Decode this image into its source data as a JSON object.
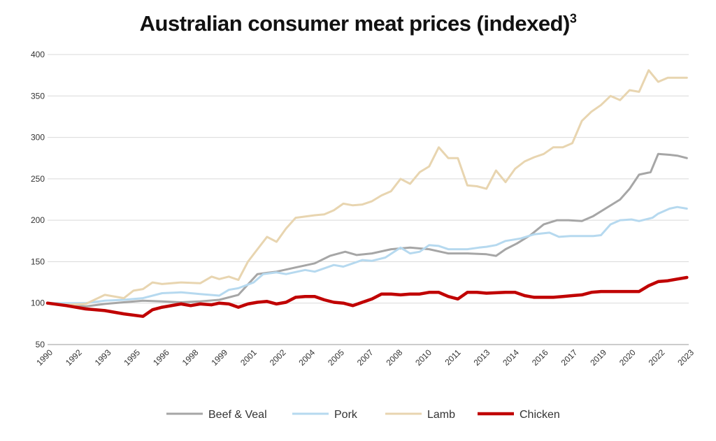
{
  "chart_data": {
    "type": "line",
    "title": "Australian consumer meat prices (indexed)",
    "title_superscript": "3",
    "xlabel": "",
    "ylabel": "",
    "ylim": [
      50,
      400
    ],
    "yticks": [
      50,
      100,
      150,
      200,
      250,
      300,
      350,
      400
    ],
    "xlim": [
      1990,
      2023.6
    ],
    "xticks": [
      "1990",
      "1992",
      "1993",
      "1995",
      "1996",
      "1998",
      "1999",
      "2001",
      "2002",
      "2004",
      "2005",
      "2007",
      "2008",
      "2010",
      "2011",
      "2013",
      "2014",
      "2016",
      "2017",
      "2019",
      "2020",
      "2022",
      "2023"
    ],
    "grid": "horizontal",
    "legend_position": "bottom",
    "series": [
      {
        "name": "Beef & Veal",
        "color": "#a6a6a6",
        "points": [
          [
            1990,
            100
          ],
          [
            1991,
            98
          ],
          [
            1992,
            96
          ],
          [
            1993,
            99
          ],
          [
            1994,
            101
          ],
          [
            1995,
            103
          ],
          [
            1996,
            102
          ],
          [
            1997,
            101
          ],
          [
            1998,
            102
          ],
          [
            1999,
            104
          ],
          [
            2000,
            110
          ],
          [
            2001,
            135
          ],
          [
            2002,
            138
          ],
          [
            2003,
            143
          ],
          [
            2004,
            148
          ],
          [
            2004.8,
            157
          ],
          [
            2005.6,
            162
          ],
          [
            2006.2,
            158
          ],
          [
            2007,
            160
          ],
          [
            2008,
            165
          ],
          [
            2009,
            167
          ],
          [
            2010,
            165
          ],
          [
            2011,
            160
          ],
          [
            2012,
            160
          ],
          [
            2013,
            159
          ],
          [
            2013.5,
            157
          ],
          [
            2014,
            165
          ],
          [
            2014.6,
            172
          ],
          [
            2015.3,
            182
          ],
          [
            2016,
            195
          ],
          [
            2016.7,
            200
          ],
          [
            2017.3,
            200
          ],
          [
            2018,
            199
          ],
          [
            2018.6,
            205
          ],
          [
            2019.3,
            215
          ],
          [
            2020,
            225
          ],
          [
            2020.5,
            238
          ],
          [
            2021,
            255
          ],
          [
            2021.6,
            258
          ],
          [
            2022,
            280
          ],
          [
            2022.6,
            279
          ],
          [
            2023,
            278
          ],
          [
            2023.5,
            275
          ]
        ]
      },
      {
        "name": "Pork",
        "color": "#b6d9ef",
        "points": [
          [
            1990,
            100
          ],
          [
            1991,
            100
          ],
          [
            1992,
            100
          ],
          [
            1993,
            103
          ],
          [
            1994,
            104
          ],
          [
            1995,
            106
          ],
          [
            1996,
            112
          ],
          [
            1997,
            113
          ],
          [
            1998,
            111
          ],
          [
            1999,
            109
          ],
          [
            1999.5,
            116
          ],
          [
            2000,
            118
          ],
          [
            2000.8,
            125
          ],
          [
            2001.3,
            135
          ],
          [
            2002,
            137
          ],
          [
            2002.5,
            135
          ],
          [
            2003.5,
            140
          ],
          [
            2004,
            138
          ],
          [
            2005,
            146
          ],
          [
            2005.5,
            144
          ],
          [
            2006,
            148
          ],
          [
            2006.5,
            152
          ],
          [
            2007,
            151
          ],
          [
            2007.7,
            155
          ],
          [
            2008.5,
            167
          ],
          [
            2009,
            160
          ],
          [
            2009.5,
            162
          ],
          [
            2010,
            170
          ],
          [
            2010.5,
            169
          ],
          [
            2011,
            165
          ],
          [
            2012,
            165
          ],
          [
            2012.6,
            167
          ],
          [
            2013,
            168
          ],
          [
            2013.5,
            170
          ],
          [
            2014,
            175
          ],
          [
            2014.8,
            178
          ],
          [
            2015.5,
            183
          ],
          [
            2016.3,
            185
          ],
          [
            2016.8,
            180
          ],
          [
            2017.4,
            181
          ],
          [
            2018,
            181
          ],
          [
            2018.6,
            181
          ],
          [
            2019,
            182
          ],
          [
            2019.5,
            195
          ],
          [
            2020,
            200
          ],
          [
            2020.6,
            201
          ],
          [
            2021,
            199
          ],
          [
            2021.7,
            203
          ],
          [
            2022,
            208
          ],
          [
            2022.6,
            214
          ],
          [
            2023,
            216
          ],
          [
            2023.5,
            214
          ]
        ]
      },
      {
        "name": "Lamb",
        "color": "#e8d5b0",
        "points": [
          [
            1990,
            100
          ],
          [
            1991,
            98
          ],
          [
            1992,
            99
          ],
          [
            1993,
            110
          ],
          [
            1994,
            106
          ],
          [
            1994.5,
            115
          ],
          [
            1995,
            117
          ],
          [
            1995.5,
            125
          ],
          [
            1996,
            123
          ],
          [
            1997,
            125
          ],
          [
            1998,
            124
          ],
          [
            1998.6,
            132
          ],
          [
            1999,
            129
          ],
          [
            1999.5,
            132
          ],
          [
            2000,
            128
          ],
          [
            2000.5,
            150
          ],
          [
            2001,
            165
          ],
          [
            2001.5,
            180
          ],
          [
            2002,
            174
          ],
          [
            2002.5,
            190
          ],
          [
            2003,
            203
          ],
          [
            2004,
            206
          ],
          [
            2004.5,
            207
          ],
          [
            2005,
            212
          ],
          [
            2005.5,
            220
          ],
          [
            2006,
            218
          ],
          [
            2006.5,
            219
          ],
          [
            2007,
            223
          ],
          [
            2007.5,
            230
          ],
          [
            2008,
            235
          ],
          [
            2008.5,
            250
          ],
          [
            2009,
            244
          ],
          [
            2009.5,
            258
          ],
          [
            2010,
            265
          ],
          [
            2010.5,
            288
          ],
          [
            2011,
            275
          ],
          [
            2011.5,
            275
          ],
          [
            2012,
            242
          ],
          [
            2012.5,
            241
          ],
          [
            2013,
            238
          ],
          [
            2013.5,
            260
          ],
          [
            2014,
            246
          ],
          [
            2014.5,
            262
          ],
          [
            2015,
            271
          ],
          [
            2015.5,
            276
          ],
          [
            2016,
            280
          ],
          [
            2016.5,
            288
          ],
          [
            2017,
            288
          ],
          [
            2017.5,
            293
          ],
          [
            2018,
            320
          ],
          [
            2018.5,
            331
          ],
          [
            2019,
            339
          ],
          [
            2019.5,
            350
          ],
          [
            2020,
            345
          ],
          [
            2020.5,
            357
          ],
          [
            2021,
            355
          ],
          [
            2021.5,
            381
          ],
          [
            2022,
            367
          ],
          [
            2022.5,
            372
          ],
          [
            2023,
            372
          ],
          [
            2023.5,
            372
          ]
        ]
      },
      {
        "name": "Chicken",
        "color": "#c00000",
        "points": [
          [
            1990,
            100
          ],
          [
            1991,
            97
          ],
          [
            1992,
            93
          ],
          [
            1993,
            91
          ],
          [
            1994,
            87
          ],
          [
            1995,
            84
          ],
          [
            1995.5,
            92
          ],
          [
            1996,
            95
          ],
          [
            1997,
            99
          ],
          [
            1997.5,
            97
          ],
          [
            1998,
            99
          ],
          [
            1998.6,
            98
          ],
          [
            1999,
            100
          ],
          [
            1999.5,
            99
          ],
          [
            2000,
            95
          ],
          [
            2000.5,
            99
          ],
          [
            2001,
            101
          ],
          [
            2001.5,
            102
          ],
          [
            2002,
            99
          ],
          [
            2002.5,
            101
          ],
          [
            2003,
            107
          ],
          [
            2003.5,
            108
          ],
          [
            2004,
            108
          ],
          [
            2004.5,
            104
          ],
          [
            2005,
            101
          ],
          [
            2005.5,
            100
          ],
          [
            2006,
            97
          ],
          [
            2006.5,
            101
          ],
          [
            2007,
            105
          ],
          [
            2007.5,
            111
          ],
          [
            2008,
            111
          ],
          [
            2008.5,
            110
          ],
          [
            2009,
            111
          ],
          [
            2009.5,
            111
          ],
          [
            2010,
            113
          ],
          [
            2010.5,
            113
          ],
          [
            2011,
            108
          ],
          [
            2011.5,
            105
          ],
          [
            2012,
            113
          ],
          [
            2012.5,
            113
          ],
          [
            2013,
            112
          ],
          [
            2014,
            113
          ],
          [
            2014.5,
            113
          ],
          [
            2015,
            109
          ],
          [
            2015.5,
            107
          ],
          [
            2016,
            107
          ],
          [
            2016.5,
            107
          ],
          [
            2017,
            108
          ],
          [
            2017.5,
            109
          ],
          [
            2018,
            110
          ],
          [
            2018.5,
            113
          ],
          [
            2019,
            114
          ],
          [
            2019.5,
            114
          ],
          [
            2020,
            114
          ],
          [
            2020.5,
            114
          ],
          [
            2021,
            114
          ],
          [
            2021.5,
            121
          ],
          [
            2022,
            126
          ],
          [
            2022.5,
            127
          ],
          [
            2023,
            129
          ],
          [
            2023.5,
            131
          ]
        ]
      }
    ]
  }
}
